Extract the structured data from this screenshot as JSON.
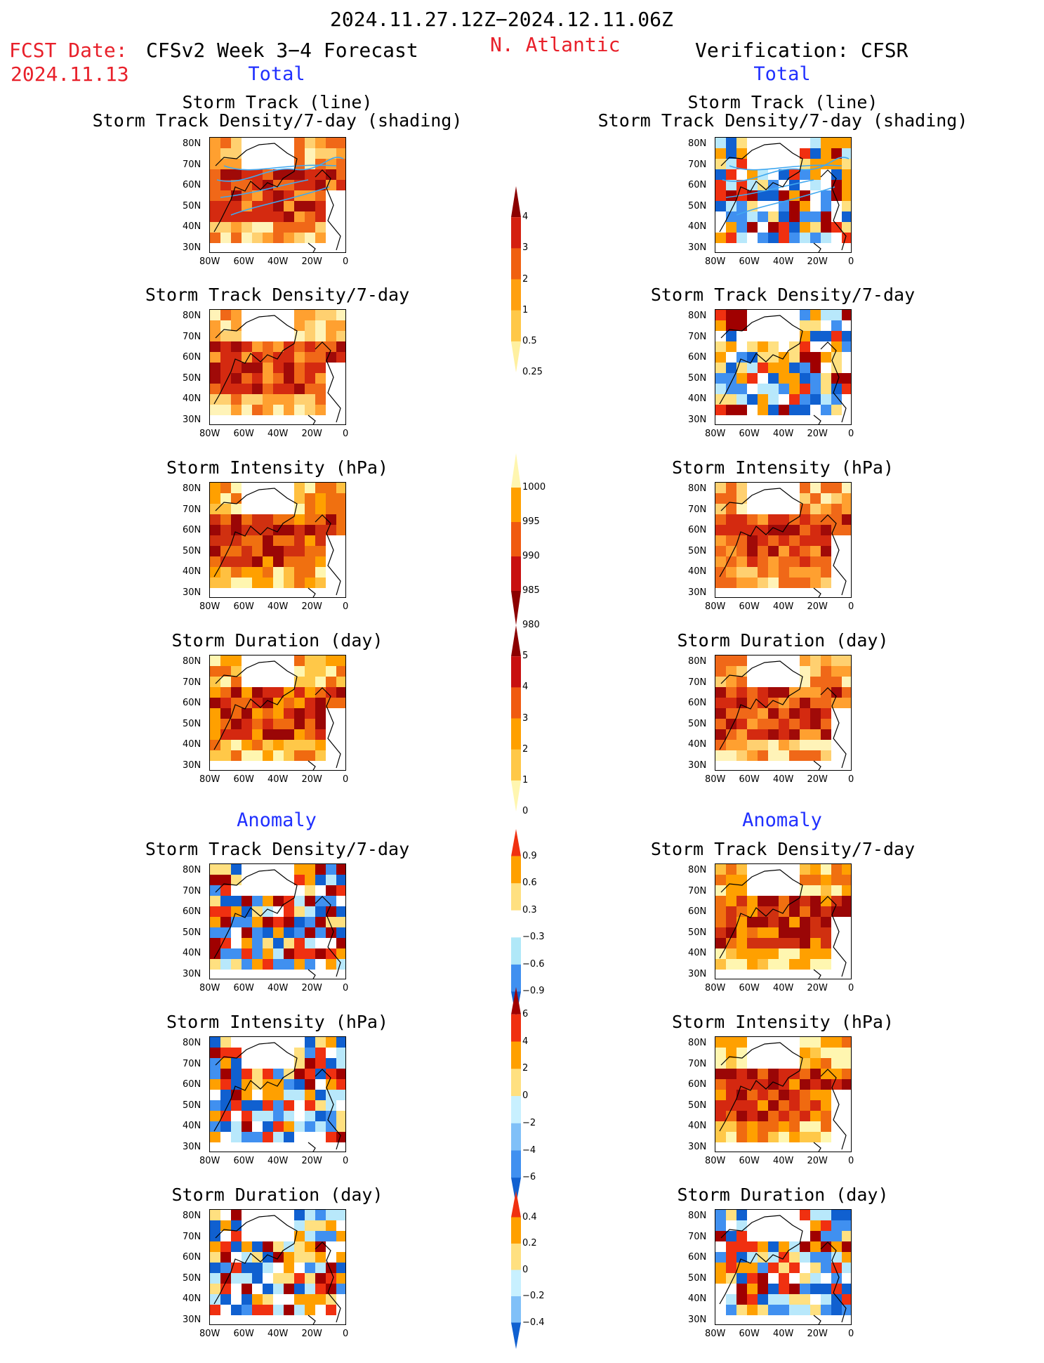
{
  "header": {
    "period": "2024.11.27.12Z−2024.12.11.06Z",
    "fcst_label": "FCST Date:",
    "fcst_date": "2024.11.13",
    "model": "CFSv2 Week 3−4 Forecast",
    "region": "N. Atlantic",
    "verification": "Verification: CFSR"
  },
  "sections": {
    "total": "Total",
    "anomaly": "Anomaly"
  },
  "axes": {
    "lat": [
      "80N",
      "70N",
      "60N",
      "50N",
      "40N",
      "30N"
    ],
    "lon": [
      "80W",
      "60W",
      "40W",
      "20W",
      "0"
    ]
  },
  "chart_data": [
    {
      "type": "heatmap",
      "panel": "forecast-total-track",
      "title_lines": [
        "Storm Track (line)",
        "Storm Track Density/7-day (shading)"
      ]
    },
    {
      "type": "heatmap",
      "panel": "forecast-total-density",
      "title_lines": [
        "Storm Track Density/7-day"
      ]
    },
    {
      "type": "heatmap",
      "panel": "forecast-total-intensity",
      "title_lines": [
        "Storm Intensity (hPa)"
      ]
    },
    {
      "type": "heatmap",
      "panel": "forecast-total-duration",
      "title_lines": [
        "Storm Duration (day)"
      ]
    },
    {
      "type": "heatmap",
      "panel": "forecast-anom-density",
      "title_lines": [
        "Storm Track Density/7-day"
      ]
    },
    {
      "type": "heatmap",
      "panel": "forecast-anom-intensity",
      "title_lines": [
        "Storm Intensity (hPa)"
      ]
    },
    {
      "type": "heatmap",
      "panel": "forecast-anom-duration",
      "title_lines": [
        "Storm Duration (day)"
      ]
    },
    {
      "type": "heatmap",
      "panel": "verif-total-track",
      "title_lines": [
        "Storm Track (line)",
        "Storm Track Density/7-day (shading)"
      ]
    },
    {
      "type": "heatmap",
      "panel": "verif-total-density",
      "title_lines": [
        "Storm Track Density/7-day"
      ]
    },
    {
      "type": "heatmap",
      "panel": "verif-total-intensity",
      "title_lines": [
        "Storm Intensity (hPa)"
      ]
    },
    {
      "type": "heatmap",
      "panel": "verif-total-duration",
      "title_lines": [
        "Storm Duration (day)"
      ]
    },
    {
      "type": "heatmap",
      "panel": "verif-anom-density",
      "title_lines": [
        "Storm Track Density/7-day"
      ]
    },
    {
      "type": "heatmap",
      "panel": "verif-anom-intensity",
      "title_lines": [
        "Storm Intensity (hPa)"
      ]
    },
    {
      "type": "heatmap",
      "panel": "verif-anom-duration",
      "title_lines": [
        "Storm Duration (day)"
      ]
    }
  ],
  "colorbars": [
    {
      "name": "density-total",
      "labels": [
        "4",
        "3",
        "2",
        "1",
        "0.5",
        "0.25"
      ],
      "colors": [
        "#8b0000",
        "#d42010",
        "#f06010",
        "#ffa010",
        "#ffc848",
        "#fff0a0"
      ]
    },
    {
      "name": "intensity-total",
      "labels": [
        "1000",
        "995",
        "990",
        "985",
        "980"
      ],
      "colors": [
        "#fff6b0",
        "#ffa000",
        "#f05a10",
        "#c81010",
        "#8b0000"
      ]
    },
    {
      "name": "duration-total",
      "labels": [
        "5",
        "4",
        "3",
        "2",
        "1",
        "0"
      ],
      "colors": [
        "#8b0000",
        "#c81010",
        "#f05a10",
        "#ffa000",
        "#ffc848",
        "#fff6b0"
      ]
    },
    {
      "name": "density-anom",
      "labels": [
        "0.9",
        "0.6",
        "0.3",
        "−0.3",
        "−0.6",
        "−0.9"
      ],
      "colors": [
        "#f03010",
        "#ffa000",
        "#ffe080",
        "#ffffff",
        "#b0e8f8",
        "#4090f0",
        "#1060d0"
      ]
    },
    {
      "name": "intensity-anom",
      "labels": [
        "6",
        "4",
        "2",
        "0",
        "−2",
        "−4",
        "−6"
      ],
      "colors": [
        "#a00000",
        "#f03010",
        "#ffa000",
        "#ffe080",
        "#c8f0ff",
        "#80c0f8",
        "#4090f0",
        "#1060d0"
      ]
    },
    {
      "name": "duration-anom",
      "labels": [
        "0.4",
        "0.2",
        "0",
        "−0.2",
        "−0.4"
      ],
      "colors": [
        "#f03010",
        "#ffa000",
        "#ffe080",
        "#c8f0ff",
        "#80c0f8",
        "#1060d0"
      ]
    }
  ]
}
